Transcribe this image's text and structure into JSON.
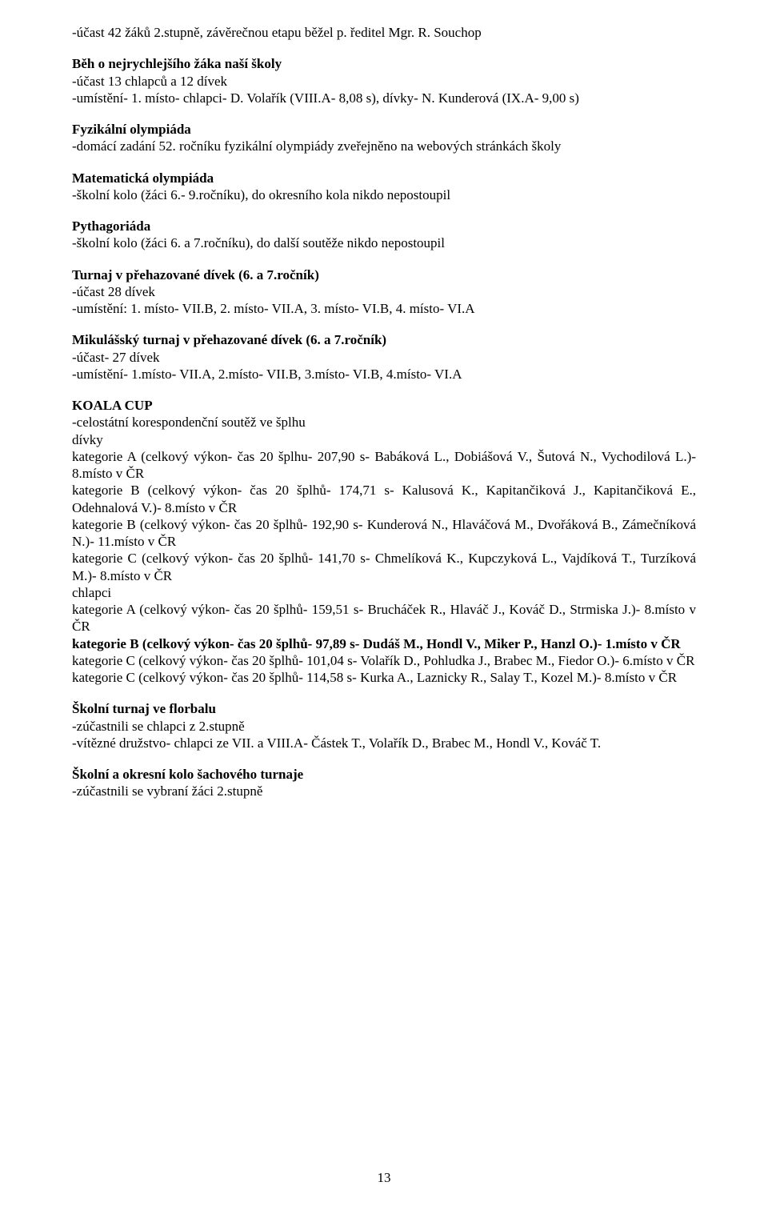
{
  "p1": "-účast 42 žáků 2.stupně, závěrečnou etapu běžel p. ředitel Mgr. R. Souchop",
  "h1": "Běh o nejrychlejšího žáka naší školy",
  "p2": "-účast 13 chlapců a 12 dívek",
  "p3": "-umístění- 1. místo- chlapci- D. Volařík (VIII.A- 8,08 s), dívky- N. Kunderová (IX.A- 9,00 s)",
  "h2": "Fyzikální olympiáda",
  "p4": "-domácí zadání 52. ročníku fyzikální olympiády zveřejněno na webových stránkách školy",
  "h3": "Matematická olympiáda",
  "p5": "-školní kolo (žáci 6.- 9.ročníku), do okresního kola nikdo nepostoupil",
  "h4": "Pythagoriáda",
  "p6": "-školní kolo (žáci 6. a 7.ročníku), do další soutěže nikdo nepostoupil",
  "h5": "Turnaj v přehazované dívek (6. a 7.ročník)",
  "p7": "-účast 28 dívek",
  "p8": "-umístění: 1. místo- VII.B, 2. místo- VII.A, 3. místo- VI.B, 4. místo- VI.A",
  "h6": "Mikulášský turnaj v přehazované dívek (6. a 7.ročník)",
  "p9": "-účast- 27 dívek",
  "p10": "-umístění- 1.místo- VII.A, 2.místo- VII.B, 3.místo- VI.B, 4.místo- VI.A",
  "h7": "KOALA CUP",
  "p11": "-celostátní korespondenční soutěž ve šplhu",
  "p12": "dívky",
  "p13": "kategorie A (celkový výkon- čas 20 šplhu- 207,90 s- Babáková L., Dobiášová V., Šutová N., Vychodilová L.)- 8.místo v ČR",
  "p14": "kategorie B (celkový výkon- čas 20 šplhů- 174,71 s- Kalusová K., Kapitančiková J., Kapitančiková E., Odehnalová V.)- 8.místo v ČR",
  "p15": "kategorie B (celkový výkon- čas 20 šplhů- 192,90 s- Kunderová N., Hlaváčová M., Dvořáková B., Zámečníková N.)- 11.místo v ČR",
  "p16": "kategorie C (celkový výkon- čas 20 šplhů- 141,70 s- Chmelíková K., Kupczyková L., Vajdíková T., Turzíková M.)- 8.místo v ČR",
  "p17": "chlapci",
  "p18": "kategorie A (celkový výkon- čas 20 šplhů- 159,51 s- Brucháček R., Hlaváč J., Kováč D., Strmiska J.)- 8.místo v ČR",
  "p19": "kategorie B (celkový výkon- čas 20 šplhů- 97,89 s- Dudáš M., Hondl V., Miker P., Hanzl O.)- 1.místo v ČR",
  "p20": "kategorie C (celkový výkon- čas 20 šplhů- 101,04 s- Volařík D., Pohludka J., Brabec M., Fiedor O.)- 6.místo v ČR",
  "p21": "kategorie C (celkový výkon- čas 20 šplhů- 114,58 s- Kurka A., Laznicky R., Salay T., Kozel M.)- 8.místo v ČR",
  "h8": "Školní turnaj ve florbalu",
  "p22": "-zúčastnili se chlapci z 2.stupně",
  "p23": "-vítězné družstvo- chlapci ze VII. a VIII.A- Částek T., Volařík D., Brabec M., Hondl V., Kováč T.",
  "h9": "Školní a okresní kolo šachového turnaje",
  "p24": "-zúčastnili se vybraní žáci 2.stupně",
  "pagenum": "13"
}
